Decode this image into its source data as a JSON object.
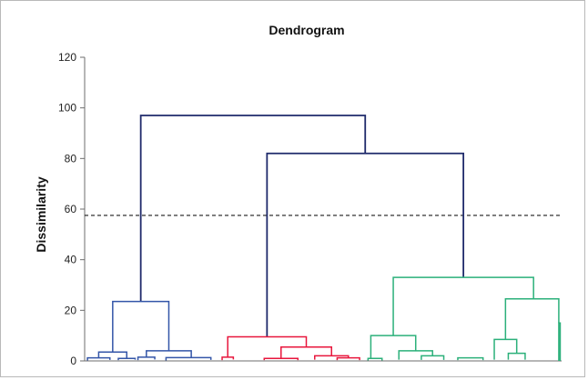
{
  "chart_data": {
    "type": "dendrogram",
    "title": "Dendrogram",
    "ylabel": "Dissimilarity",
    "xlabel": "",
    "ylim": [
      0,
      120
    ],
    "yticks": [
      0,
      20,
      40,
      60,
      80,
      100,
      120
    ],
    "grid": false,
    "legend": "none",
    "truncation_line": {
      "value": 57.5,
      "style": "dashed",
      "color": "#1a1a1a"
    },
    "colors": {
      "upper_tree": "#1f2a6b",
      "cluster_1": "#3355a8",
      "cluster_2": "#e8163c",
      "cluster_3": "#2bb07a"
    },
    "x_range": [
      0,
      17
    ],
    "merges": [
      {
        "cluster": "upper_tree",
        "left": [
          2.0,
          23.5
        ],
        "right": [
          10.0,
          82.0
        ],
        "height": 97.0
      },
      {
        "cluster": "upper_tree",
        "left": [
          6.5,
          9.5
        ],
        "right": [
          13.5,
          33.0
        ],
        "height": 82.0
      },
      {
        "cluster": "cluster_1",
        "left": [
          1.0,
          3.5
        ],
        "right": [
          3.0,
          4.0
        ],
        "height": 23.5
      },
      {
        "cluster": "cluster_1",
        "left": [
          0.5,
          1.2
        ],
        "right": [
          1.5,
          1.0
        ],
        "height": 3.5
      },
      {
        "cluster": "cluster_1",
        "left": [
          2.2,
          1.5
        ],
        "right": [
          3.8,
          1.3
        ],
        "height": 4.0
      },
      {
        "cluster": "cluster_1",
        "left": [
          0.1,
          0.2
        ],
        "right": [
          0.9,
          0.4
        ],
        "height": 1.2
      },
      {
        "cluster": "cluster_1",
        "left": [
          1.2,
          0.3
        ],
        "right": [
          1.8,
          0.5
        ],
        "height": 1.0
      },
      {
        "cluster": "cluster_1",
        "left": [
          1.9,
          0.3
        ],
        "right": [
          2.5,
          0.6
        ],
        "height": 1.5
      },
      {
        "cluster": "cluster_1",
        "left": [
          2.9,
          0.2
        ],
        "right": [
          4.5,
          0.4
        ],
        "height": 1.3
      },
      {
        "cluster": "cluster_2",
        "left": [
          5.1,
          1.5
        ],
        "right": [
          7.9,
          5.5
        ],
        "height": 9.5
      },
      {
        "cluster": "cluster_2",
        "left": [
          4.9,
          0.3
        ],
        "right": [
          5.3,
          0.6
        ],
        "height": 1.5
      },
      {
        "cluster": "cluster_2",
        "left": [
          7.0,
          1.0
        ],
        "right": [
          8.8,
          2.0
        ],
        "height": 5.5
      },
      {
        "cluster": "cluster_2",
        "left": [
          6.4,
          0.3
        ],
        "right": [
          7.6,
          0.3
        ],
        "height": 1.0
      },
      {
        "cluster": "cluster_2",
        "left": [
          8.2,
          0.5
        ],
        "right": [
          9.4,
          1.2
        ],
        "height": 2.0
      },
      {
        "cluster": "cluster_2",
        "left": [
          9.0,
          0.3
        ],
        "right": [
          9.8,
          0.3
        ],
        "height": 1.2
      },
      {
        "cluster": "cluster_3",
        "left": [
          11.0,
          10.0
        ],
        "right": [
          16.0,
          24.5
        ],
        "height": 33.0
      },
      {
        "cluster": "cluster_3",
        "left": [
          10.2,
          1.0
        ],
        "right": [
          11.8,
          4.0
        ],
        "height": 10.0
      },
      {
        "cluster": "cluster_3",
        "left": [
          15.0,
          8.5
        ],
        "right": [
          16.9,
          15.0
        ],
        "height": 24.5
      },
      {
        "cluster": "cluster_3",
        "left": [
          11.2,
          0.5
        ],
        "right": [
          12.4,
          2.0
        ],
        "height": 4.0
      },
      {
        "cluster": "cluster_3",
        "left": [
          12.0,
          0.4
        ],
        "right": [
          12.8,
          0.4
        ],
        "height": 2.0
      },
      {
        "cluster": "cluster_3",
        "left": [
          14.6,
          0.5
        ],
        "right": [
          15.4,
          3.0
        ],
        "height": 8.5
      },
      {
        "cluster": "cluster_3",
        "left": [
          15.1,
          0.5
        ],
        "right": [
          15.7,
          0.5
        ],
        "height": 3.0
      },
      {
        "cluster": "cluster_3",
        "left": [
          16.9,
          0.0
        ],
        "right": [
          16.95,
          0.0
        ],
        "height": 15.0
      },
      {
        "cluster": "cluster_3",
        "left": [
          10.1,
          0.2
        ],
        "right": [
          10.6,
          0.2
        ],
        "height": 1.0
      },
      {
        "cluster": "cluster_3",
        "left": [
          13.3,
          0.3
        ],
        "right": [
          14.2,
          0.3
        ],
        "height": 1.2
      }
    ]
  }
}
